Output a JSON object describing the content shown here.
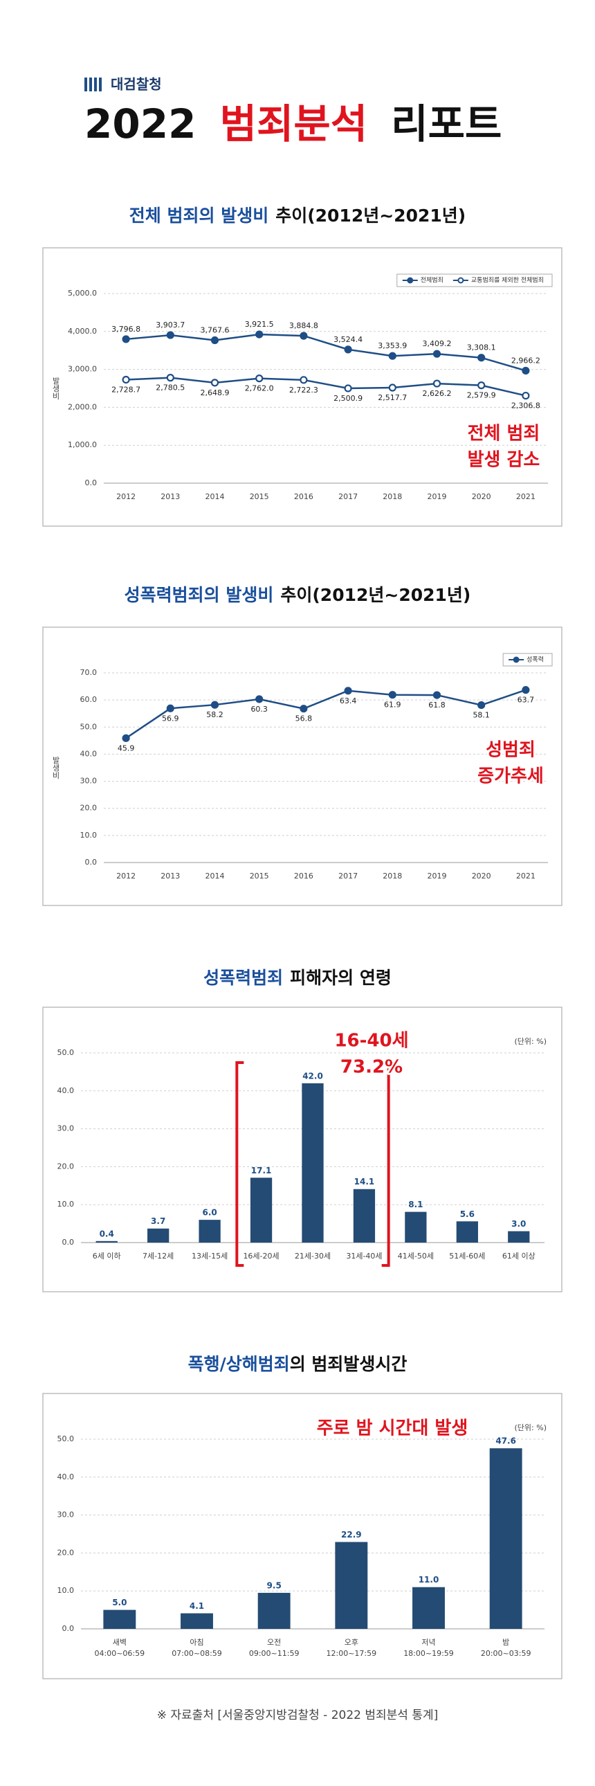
{
  "header": {
    "org": "대검찰청",
    "title_year": "2022",
    "title_highlight": "범죄분석",
    "title_rest": "리포트"
  },
  "chart_data": [
    {
      "type": "line",
      "title_highlight": "전체 범죄의 발생비",
      "title_rest": "추이(2012년~2021년)",
      "y_label": "발생비",
      "categories": [
        "2012",
        "2013",
        "2014",
        "2015",
        "2016",
        "2017",
        "2018",
        "2019",
        "2020",
        "2021"
      ],
      "series": [
        {
          "name": "전체범죄",
          "color": "#1f4e86",
          "marker": "filled",
          "values": [
            3796.8,
            3903.7,
            3767.6,
            3921.5,
            3884.8,
            3524.4,
            3353.9,
            3409.2,
            3308.1,
            2966.2
          ],
          "value_labels": [
            "3,796.8",
            "3,903.7",
            "3,767.6",
            "3,921.5",
            "3,884.8",
            "3,524.4",
            "3,353.9",
            "3,409.2",
            "3,308.1",
            "2,966.2"
          ]
        },
        {
          "name": "교통범죄를 제외한 전체범죄",
          "color": "#1f4e86",
          "marker": "hollow",
          "values": [
            2728.7,
            2780.5,
            2648.9,
            2762.0,
            2722.3,
            2500.9,
            2517.7,
            2626.2,
            2579.9,
            2306.8
          ],
          "value_labels": [
            "2,728.7",
            "2,780.5",
            "2,648.9",
            "2,762.0",
            "2,722.3",
            "2,500.9",
            "2,517.7",
            "2,626.2",
            "2,579.9",
            "2,306.8"
          ]
        }
      ],
      "ylim": [
        0,
        5000
      ],
      "yticks": [
        {
          "value": 0,
          "label": "0.0"
        },
        {
          "value": 1000,
          "label": "1,000.0"
        },
        {
          "value": 2000,
          "label": "2,000.0"
        },
        {
          "value": 3000,
          "label": "3,000.0"
        },
        {
          "value": 4000,
          "label": "4,000.0"
        },
        {
          "value": 5000,
          "label": "5,000.0"
        }
      ],
      "grid": true,
      "legend": "top-right",
      "annotation": [
        "전체 범죄",
        "발생 감소"
      ]
    },
    {
      "type": "line",
      "title_highlight": "성폭력범죄의 발생비",
      "title_rest": "추이(2012년~2021년)",
      "y_label": "발생비",
      "categories": [
        "2012",
        "2013",
        "2014",
        "2015",
        "2016",
        "2017",
        "2018",
        "2019",
        "2020",
        "2021"
      ],
      "series": [
        {
          "name": "성폭력",
          "color": "#1f4e86",
          "marker": "filled",
          "values": [
            45.9,
            56.9,
            58.2,
            60.3,
            56.8,
            63.4,
            61.9,
            61.8,
            58.1,
            63.7
          ]
        }
      ],
      "ylim": [
        0,
        70
      ],
      "yticks": [
        {
          "value": 0,
          "label": "0.0"
        },
        {
          "value": 10,
          "label": "10.0"
        },
        {
          "value": 20,
          "label": "20.0"
        },
        {
          "value": 30,
          "label": "30.0"
        },
        {
          "value": 40,
          "label": "40.0"
        },
        {
          "value": 50,
          "label": "50.0"
        },
        {
          "value": 60,
          "label": "60.0"
        },
        {
          "value": 70,
          "label": "70.0"
        }
      ],
      "grid": true,
      "legend": "top-right",
      "annotation": [
        "성범죄",
        "증가추세"
      ]
    },
    {
      "type": "bar",
      "title_highlight": "성폭력범죄",
      "title_rest": "피해자의 연령",
      "unit": "(단위: %)",
      "categories": [
        "6세 이하",
        "7세-12세",
        "13세-15세",
        "16세-20세",
        "21세-30세",
        "31세-40세",
        "41세-50세",
        "51세-60세",
        "61세 이상"
      ],
      "values": [
        0.4,
        3.7,
        6.0,
        17.1,
        42.0,
        14.1,
        8.1,
        5.6,
        3.0
      ],
      "value_labels": [
        "0.4",
        "3.7",
        "6.0",
        "17.1",
        "42.0",
        "14.1",
        "8.1",
        "5.6",
        "3.0"
      ],
      "color": "#244b73",
      "ylim": [
        0,
        50
      ],
      "yticks": [
        {
          "value": 0,
          "label": "0.0"
        },
        {
          "value": 10,
          "label": "10.0"
        },
        {
          "value": 20,
          "label": "20.0"
        },
        {
          "value": 30,
          "label": "30.0"
        },
        {
          "value": 40,
          "label": "40.0"
        },
        {
          "value": 50,
          "label": "50.0"
        }
      ],
      "grid": true,
      "annotation": [
        "16-40세",
        "73.2%"
      ]
    },
    {
      "type": "bar",
      "title_highlight": "폭행/상해범죄",
      "title_rest": "의 범죄발생시간",
      "unit": "(단위: %)",
      "categories": [
        "새벽",
        "아침",
        "오전",
        "오후",
        "저녁",
        "밤"
      ],
      "category_sublabels": [
        "04:00~06:59",
        "07:00~08:59",
        "09:00~11:59",
        "12:00~17:59",
        "18:00~19:59",
        "20:00~03:59"
      ],
      "values": [
        5.0,
        4.1,
        9.5,
        22.9,
        11.0,
        47.6
      ],
      "value_labels": [
        "5.0",
        "4.1",
        "9.5",
        "22.9",
        "11.0",
        "47.6"
      ],
      "color": "#244b73",
      "ylim": [
        0,
        50
      ],
      "yticks": [
        {
          "value": 0,
          "label": "0.0"
        },
        {
          "value": 10,
          "label": "10.0"
        },
        {
          "value": 20,
          "label": "20.0"
        },
        {
          "value": 30,
          "label": "30.0"
        },
        {
          "value": 40,
          "label": "40.0"
        },
        {
          "value": 50,
          "label": "50.0"
        }
      ],
      "grid": true,
      "annotation": [
        "주로 밤 시간대 발생"
      ]
    }
  ],
  "source": "※ 자료출처 [서울중앙지방검찰청 - 2022 범죄분석 통계]"
}
